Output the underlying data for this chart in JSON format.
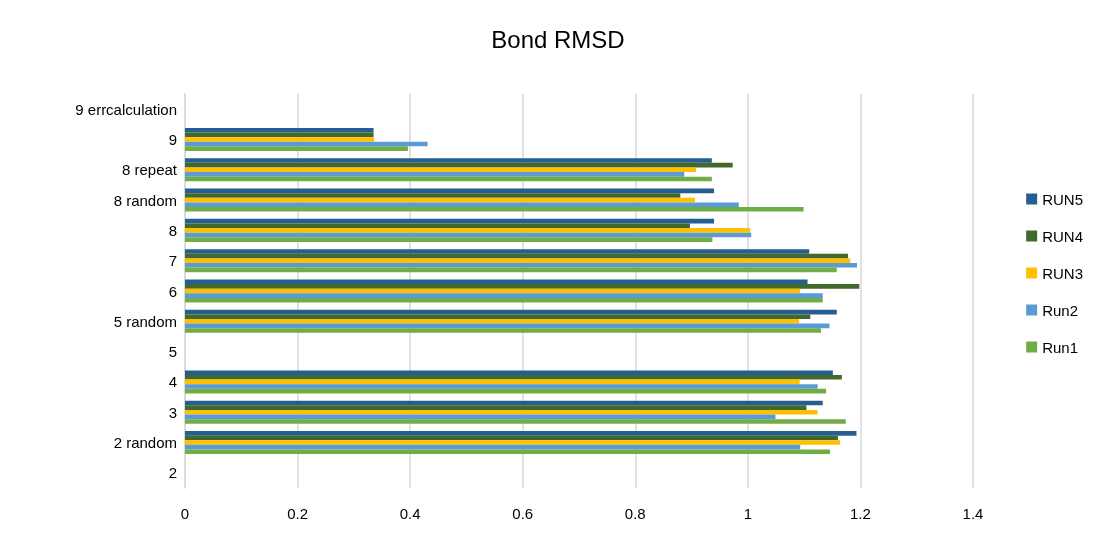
{
  "chart_data": {
    "type": "bar",
    "title": "Bond RMSD",
    "orientation": "horizontal",
    "categories": [
      "9 errcalculation",
      "9",
      "8 repeat",
      "8 random",
      "8",
      "7",
      "6",
      "5 random",
      "5",
      "4",
      "3",
      "2 random",
      "2"
    ],
    "series": [
      {
        "name": "RUN5",
        "color": "#255e91",
        "values": [
          null,
          0.335,
          0.936,
          0.94,
          0.94,
          1.109,
          1.106,
          1.158,
          null,
          1.151,
          1.133,
          1.193,
          null
        ]
      },
      {
        "name": "RUN4",
        "color": "#43682b",
        "values": [
          null,
          0.335,
          0.973,
          0.88,
          0.897,
          1.178,
          1.198,
          1.111,
          null,
          1.167,
          1.104,
          1.16,
          null
        ]
      },
      {
        "name": "RUN3",
        "color": "#ffc000",
        "values": [
          null,
          0.336,
          0.908,
          0.906,
          1.004,
          1.182,
          1.093,
          1.091,
          null,
          1.092,
          1.124,
          1.164,
          null
        ]
      },
      {
        "name": "Run2",
        "color": "#5b9bd5",
        "values": [
          null,
          0.431,
          0.887,
          0.984,
          1.006,
          1.194,
          1.133,
          1.145,
          null,
          1.124,
          1.049,
          1.093,
          null
        ]
      },
      {
        "name": "Run1",
        "color": "#70ad47",
        "values": [
          null,
          0.396,
          0.936,
          1.099,
          0.937,
          1.158,
          1.133,
          1.13,
          null,
          1.139,
          1.174,
          1.146,
          null
        ]
      }
    ],
    "xlim": [
      0,
      1.4
    ],
    "xticks": [
      0,
      0.2,
      0.4,
      0.6,
      0.8,
      1,
      1.2,
      1.4
    ],
    "grid": "x",
    "legend": "right"
  }
}
